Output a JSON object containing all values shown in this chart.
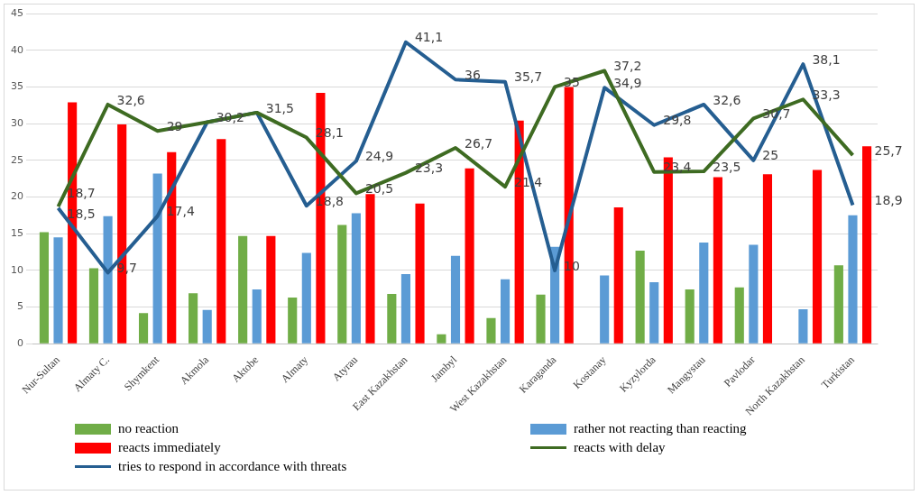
{
  "chart_data": {
    "type": "bar",
    "categories": [
      "Nur-Sultan",
      "Almaty C.",
      "Shymkent",
      "Akmola",
      "Aktobe",
      "Almaty",
      "Atyrau",
      "East Kazakhstan",
      "Jambyl",
      "West Kazakhstan",
      "Karaganda",
      "Kostanay",
      "Kyzylorda",
      "Mangystau",
      "Pavlodar",
      "North Kazakhstan",
      "Turkistan"
    ],
    "series": [
      {
        "name": "no reaction",
        "color": "#70ad47",
        "values": [
          15.2,
          10.3,
          4.2,
          6.9,
          14.7,
          6.3,
          16.2,
          6.8,
          1.3,
          3.5,
          6.7,
          null,
          12.7,
          7.4,
          7.7,
          null,
          10.7
        ]
      },
      {
        "name": "rather not reacting than reacting",
        "color": "#5b9bd5",
        "values": [
          14.5,
          17.4,
          23.2,
          4.6,
          7.4,
          12.4,
          17.8,
          9.5,
          12.0,
          8.8,
          13.2,
          9.3,
          8.4,
          13.8,
          13.5,
          4.7,
          17.5
        ]
      },
      {
        "name": "reacts immediately",
        "color": "#ff0000",
        "values": [
          32.9,
          29.9,
          26.1,
          27.9,
          14.7,
          34.2,
          20.4,
          19.1,
          23.9,
          30.4,
          35.0,
          18.6,
          25.4,
          22.7,
          23.1,
          23.7,
          26.9
        ]
      },
      {
        "name": "reacts with delay",
        "type": "line",
        "color": "#3e6b22",
        "values": [
          18.7,
          32.6,
          29,
          30.2,
          31.5,
          28.1,
          20.5,
          23.3,
          26.7,
          21.4,
          35,
          37.2,
          23.4,
          23.5,
          30.7,
          33.3,
          25.7
        ],
        "value_labels": [
          "18,7",
          "32,6",
          "29",
          null,
          null,
          "28,1",
          "20,5",
          "23,3",
          "26,7",
          "21,4",
          "35",
          "37,2",
          "23,4",
          "23,5",
          "30,7",
          "33,3",
          "25,7"
        ]
      },
      {
        "name": "tries to respond in accordance with threats",
        "type": "line",
        "color": "#255e91",
        "values": [
          18.5,
          9.7,
          17.4,
          30.2,
          31.5,
          18.8,
          24.9,
          41.1,
          36,
          35.7,
          10,
          34.9,
          29.8,
          32.6,
          25,
          38.1,
          18.9
        ],
        "value_labels": [
          "18,5",
          "9,7",
          "17,4",
          "30,2",
          "31,5",
          "18,8",
          "24,9",
          "41,1",
          "36",
          "35,7",
          "10",
          "34,9",
          "29,8",
          "32,6",
          "25",
          "38,1",
          "18,9"
        ]
      }
    ],
    "ylim": [
      0,
      45
    ],
    "yticks": [
      0,
      5,
      10,
      15,
      20,
      25,
      30,
      35,
      40,
      45
    ],
    "grid": "y",
    "legend": "bottom"
  }
}
